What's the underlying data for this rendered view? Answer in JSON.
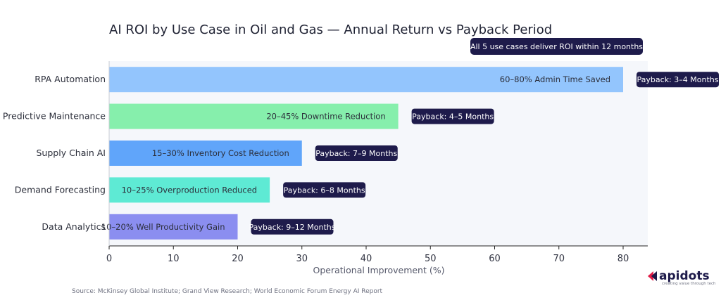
{
  "chart_data": {
    "type": "bar",
    "orientation": "horizontal",
    "title": "AI ROI by Use Case in Oil and Gas — Annual Return vs Payback Period",
    "xlabel": "Operational Improvement (%)",
    "ylabel": "",
    "xlim": [
      0,
      84
    ],
    "xticks": [
      0,
      10,
      20,
      30,
      40,
      50,
      60,
      70,
      80
    ],
    "grid": false,
    "categories": [
      "RPA Automation",
      "Predictive Maintenance",
      "Supply Chain AI",
      "Demand Forecasting",
      "Data Analytics"
    ],
    "values": [
      80,
      45,
      30,
      25,
      20
    ],
    "bar_labels": [
      "60–80% Admin Time Saved",
      "20–45% Downtime Reduction",
      "15–30% Inventory Cost Reduction",
      "10–25% Overproduction Reduced",
      "10–20% Well Productivity Gain"
    ],
    "payback_labels": [
      "Payback: 3–4 Months",
      "Payback: 4–5 Months",
      "Payback: 7–9 Months",
      "Payback: 6–8 Months",
      "Payback: 9–12 Months"
    ],
    "colors": [
      "#93c5fd",
      "#86efac",
      "#60a5fa",
      "#5eead4",
      "#8b8ef0"
    ],
    "annotation": "All 5 use cases deliver ROI within 12 months"
  },
  "source": "Source: McKinsey Global Institute; Grand View Research; World Economic Forum Energy AI Report",
  "logo": {
    "word": "apidots",
    "tagline": "creating value through tech",
    "accent_color": "#e11d48",
    "text_color": "#1e1b4b"
  },
  "badge_color": "#1e1b4b",
  "plot_background": "#f5f7fb"
}
